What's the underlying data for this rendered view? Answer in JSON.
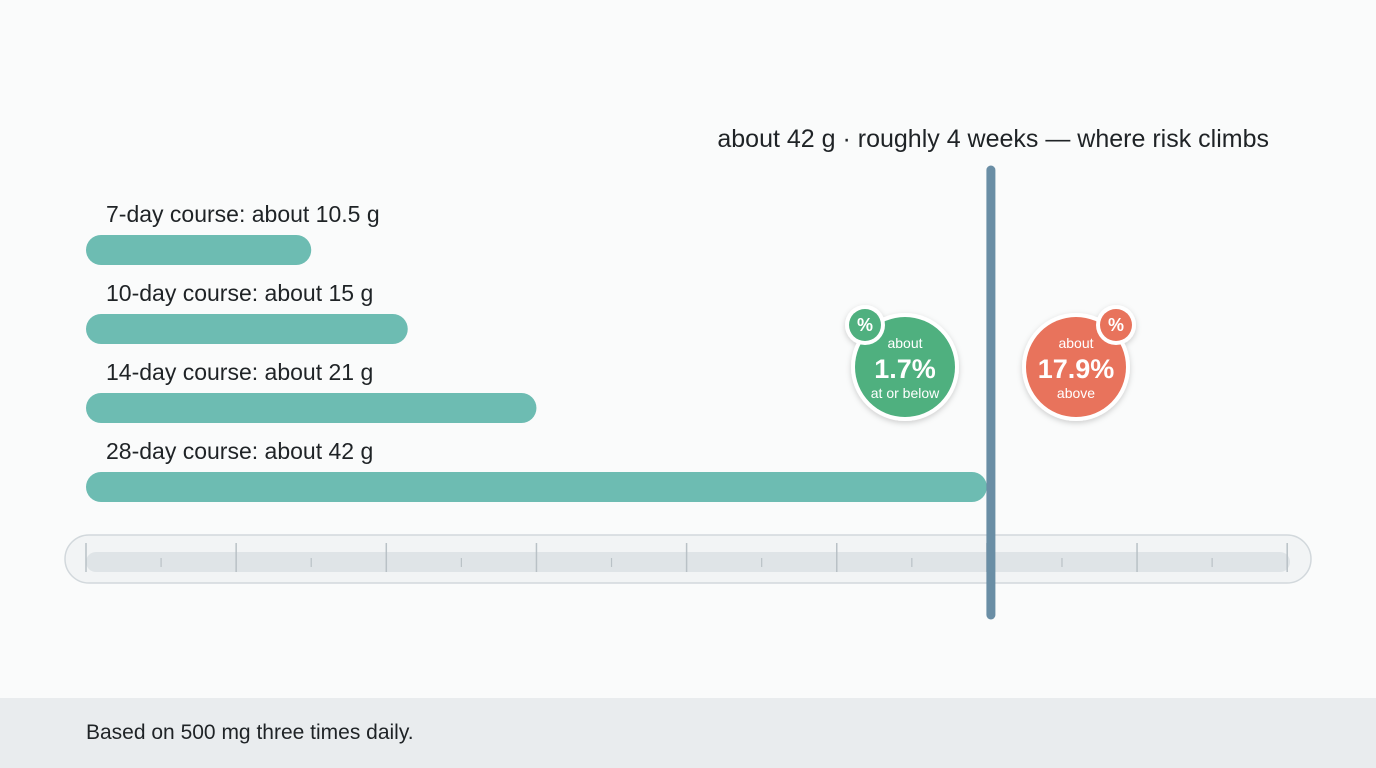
{
  "chart_data": {
    "type": "bar",
    "orientation": "horizontal",
    "unit": "g",
    "categories": [
      "7-day course: about 10.5 g",
      "10-day course: about 15 g",
      "14-day course: about 21 g",
      "28-day course: about 42 g"
    ],
    "values": [
      10.5,
      15,
      21,
      42
    ],
    "xlim": [
      0,
      56
    ],
    "grid": false,
    "threshold": {
      "value": 42,
      "label": "about 42 g · roughly 4 weeks — where risk climbs"
    },
    "annotations": [
      {
        "side": "at or below",
        "prefix": "about",
        "value": "1.7%",
        "suffix": "at or below",
        "badge": "%",
        "color": "#4fb07f"
      },
      {
        "side": "above",
        "prefix": "about",
        "value": "17.9%",
        "suffix": "above",
        "badge": "%",
        "color": "#e8735b"
      }
    ]
  },
  "colors": {
    "bar": "#6dbcb2",
    "threshold_line": "#6a8ea5",
    "axis_track": "#dfe4e7",
    "axis_frame": "#f2f4f5",
    "tick": "#b9c1c6"
  },
  "footer": {
    "note": "Based on 500 mg three times daily."
  }
}
